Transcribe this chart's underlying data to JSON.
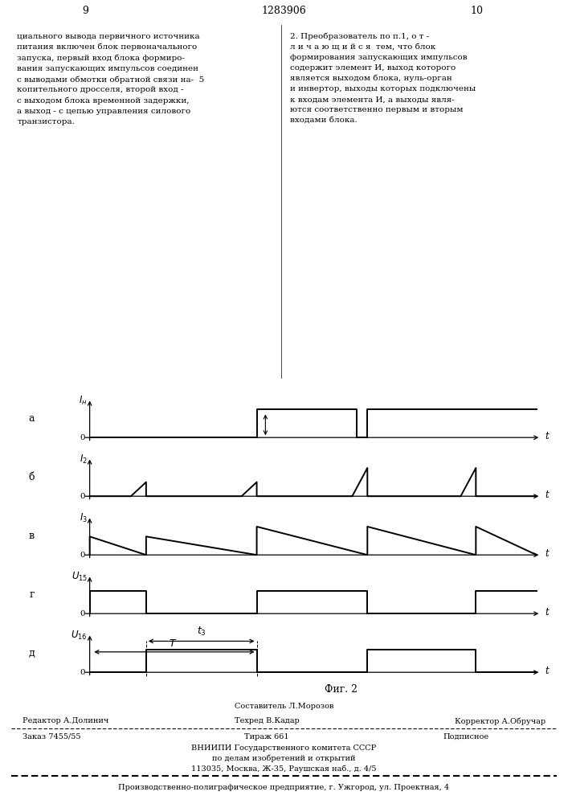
{
  "page_numbers": [
    "9",
    "1283906",
    "10"
  ],
  "text_left": "циального вывода первичного источника\nпитания включен блок первоначального\nзапуска, первый вход блока формиро-\nвания запускающих импульсов соединен\nс выводами обмотки обратной связи на-  5\nкопительного дросселя, второй вход -\nс выходом блока временной задержки,\nа выход - с цепью управления силового\nтранзистора.",
  "text_right": "2. Преобразователь по п.1, о т -\nл и ч а ю щ и й с я  тем, что блок\nформирования запускающих импульсов\nсодержит элемент И, выход которого\nявляется выходом блока, нуль-орган\nи инвертор, выходы которых подключены\nк входам элемента И, а выходы явля-\nются соответственно первым и вторым\nвходами блока.",
  "fig_caption": "Фиг. 2",
  "footer_composer": "Составитель Л.Морозов",
  "footer_editor": "Редактор А.Долинич",
  "footer_techred": "Техред В.Кадар",
  "footer_corrector": "Корректор А.Обручар",
  "footer_order": "Заказ 7455/55",
  "footer_tirazh": "Тираж 661",
  "footer_podpisnoe": "Подписное",
  "footer_vniipи": "ВНИИПИ Государственного комитета СССР",
  "footer_dela": "по делам изобретений и открытий",
  "footer_address": "113035, Москва, Ж-35, Раушская наб., д. 4/5",
  "footer_factory": "Производственно-полиграфическое предприятие, г. Ужгород, ул. Проектная, 4",
  "waveform_labels_left": [
    "а",
    "б",
    "в",
    "г",
    "д"
  ],
  "background_color": "#ffffff",
  "line_color": "#000000"
}
